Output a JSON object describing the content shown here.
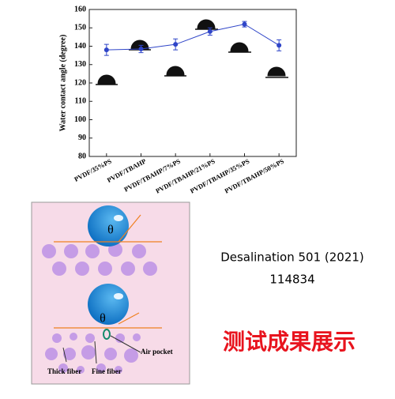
{
  "chart_data": {
    "type": "line",
    "y_label": "Water contact angle (degree)",
    "categories": [
      "PVDF/35%PS",
      "PVDF/TBAHP",
      "PVDF/TBAHP/7%PS",
      "PVDF/TBAHP/21%PS",
      "PVDF/TBAHP/35%PS",
      "PVDF/TBAHP/50%PS"
    ],
    "series": [
      {
        "color": "#2f45c8",
        "values": [
          138,
          138.5,
          141,
          148,
          152,
          140.5
        ],
        "errors": [
          3,
          2,
          3,
          2,
          1.5,
          3
        ]
      }
    ],
    "ylim": [
      80,
      160
    ],
    "yticks": [
      80,
      90,
      100,
      110,
      120,
      130,
      140,
      150,
      160
    ]
  },
  "diagram": {
    "theta_top": "θ",
    "theta_bottom": "θ",
    "air_pocket": "Air pocket",
    "thick_fiber": "Thick fiber",
    "fine_fiber": "Fine fiber"
  },
  "citation": {
    "journal": "Desalination 501 (2021)",
    "number": "114834"
  },
  "caption": "测试成果展示"
}
